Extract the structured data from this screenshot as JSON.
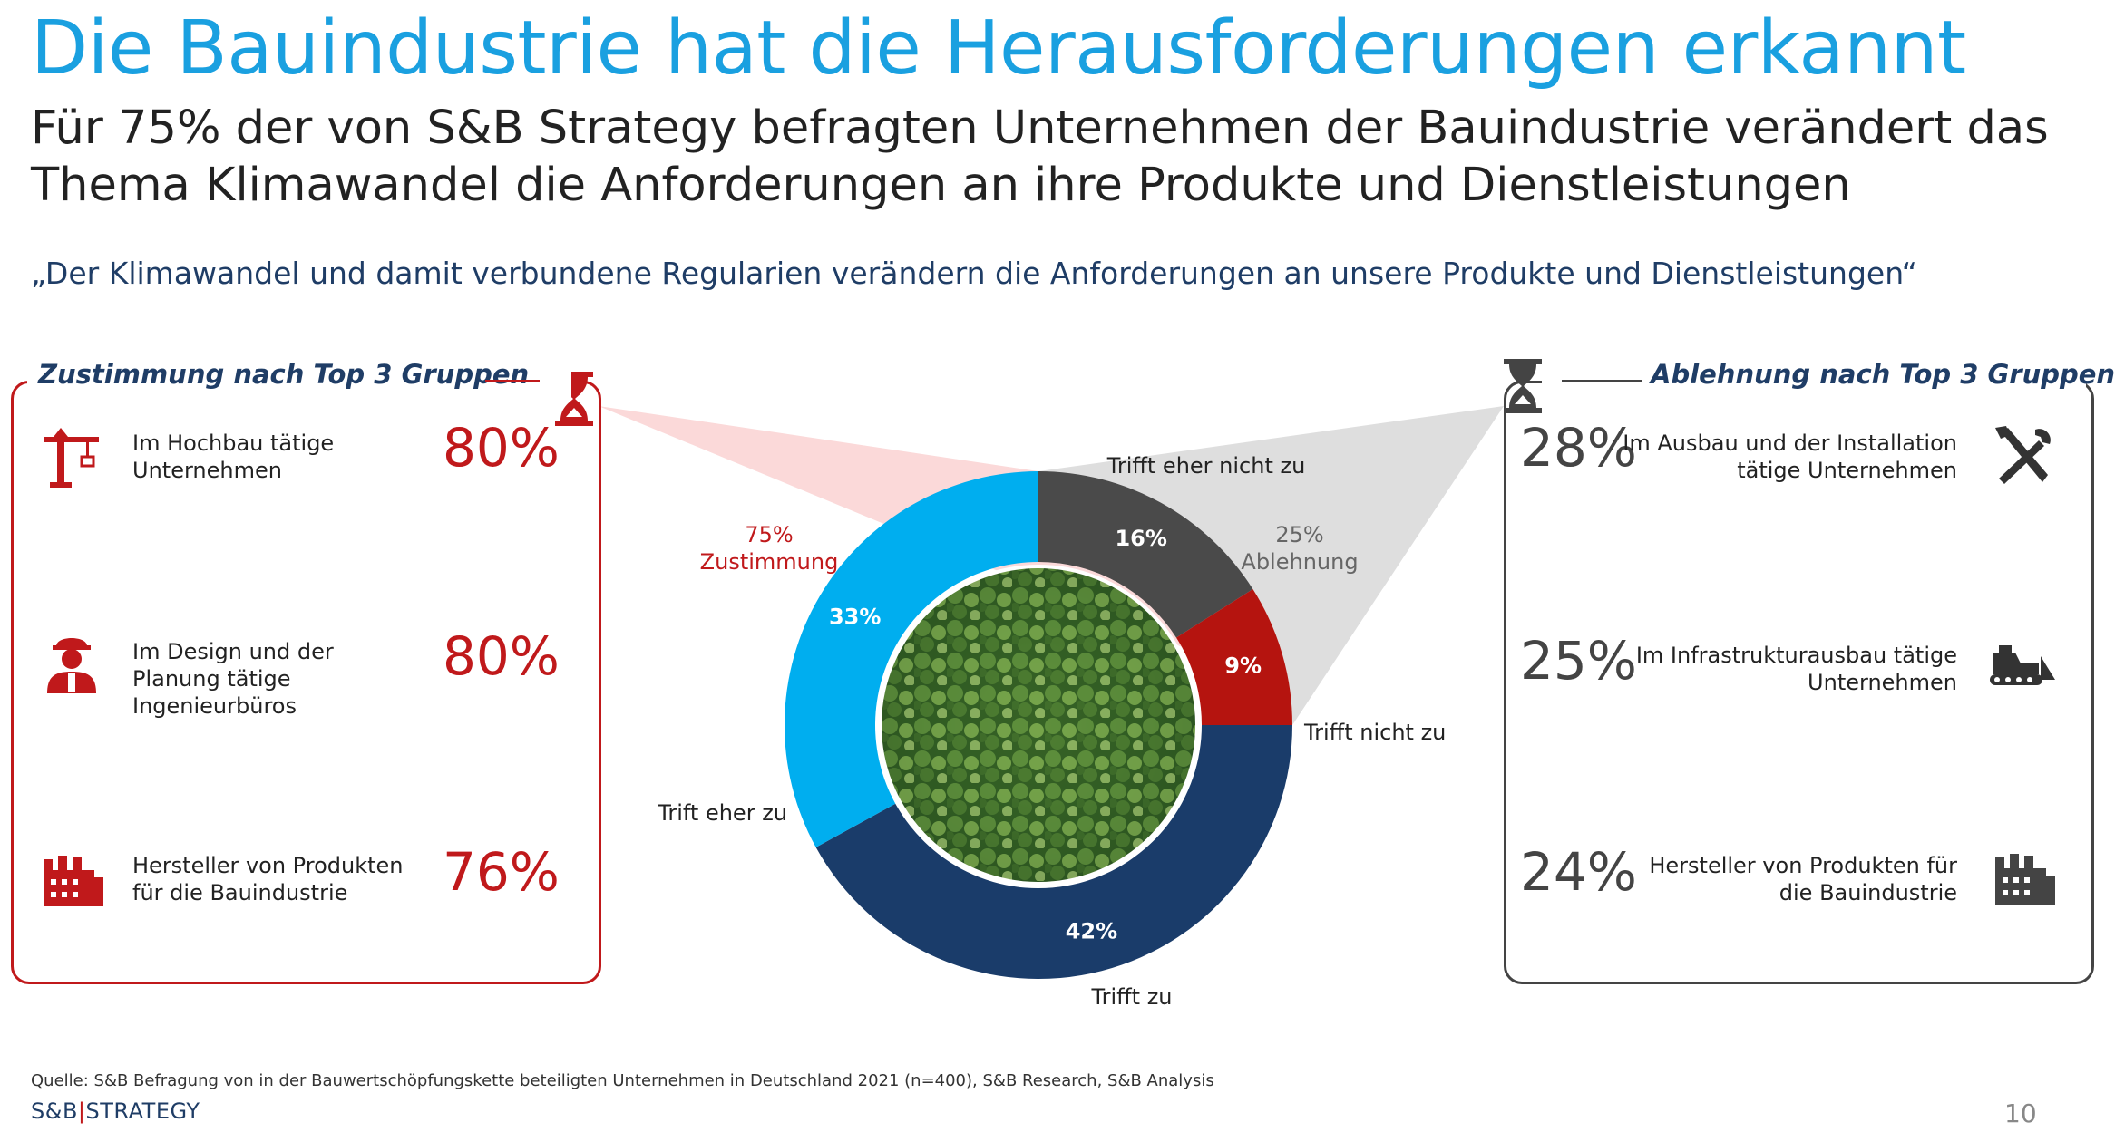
{
  "header": {
    "title": "Die Bauindustrie hat die Herausforderungen erkannt",
    "subtitle": "Für 75% der von S&B Strategy befragten Unternehmen der Bauindustrie verändert das Thema Klimawandel die Anforderungen an ihre Produkte und Dienstleistungen",
    "quote": "„Der Klimawandel und damit verbundene Regularien verändern die Anforderungen an unsere Produkte und Dienstleistungen“"
  },
  "left_group": {
    "heading": "Zustimmung nach Top 3 Gruppen",
    "rows": [
      {
        "label": "Im Hochbau tätige Unternehmen",
        "value": "80%",
        "icon": "crane-icon"
      },
      {
        "label": "Im Design und der Planung tätige Ingenieurbüros",
        "value": "80%",
        "icon": "engineer-icon"
      },
      {
        "label": "Hersteller von Produkten für die Bauindustrie",
        "value": "76%",
        "icon": "factory-icon"
      }
    ]
  },
  "right_group": {
    "heading": "Ablehnung nach Top 3 Gruppen",
    "rows": [
      {
        "label": "Im Ausbau und der Installation tätige Unternehmen",
        "value": "28%",
        "icon": "tools-icon"
      },
      {
        "label": "Im Infrastrukturausbau tätige Unternehmen",
        "value": "25%",
        "icon": "bulldozer-icon"
      },
      {
        "label": "Hersteller von Produkten für die Bauindustrie",
        "value": "24%",
        "icon": "factory-icon"
      }
    ]
  },
  "chart_data": {
    "type": "pie",
    "variant": "donut",
    "slices": [
      {
        "label": "Trifft eher nicht zu",
        "value": 16,
        "display": "16%",
        "color": "#4a4a4a"
      },
      {
        "label": "Trifft nicht zu",
        "value": 9,
        "display": "9%",
        "color": "#b5140f"
      },
      {
        "label": "Trifft zu",
        "value": 42,
        "display": "42%",
        "color": "#1a3c6a"
      },
      {
        "label": "Trift eher zu",
        "value": 33,
        "display": "33%",
        "color": "#00aeef"
      }
    ],
    "groups": [
      {
        "percent": "75%",
        "label": "Zustimmung",
        "color": "#c0191b"
      },
      {
        "percent": "25%",
        "label": "Ablehnung",
        "color": "#666666"
      }
    ],
    "center_image": "forest aerial photo"
  },
  "footer": {
    "source": "Quelle: S&B Befragung von in der Bauwertschöpfungskette beteiligten Unternehmen in Deutschland 2021 (n=400), S&B Research, S&B Analysis",
    "logo_left": "S&B",
    "logo_right": "STRATEGY",
    "page_number": "10"
  }
}
